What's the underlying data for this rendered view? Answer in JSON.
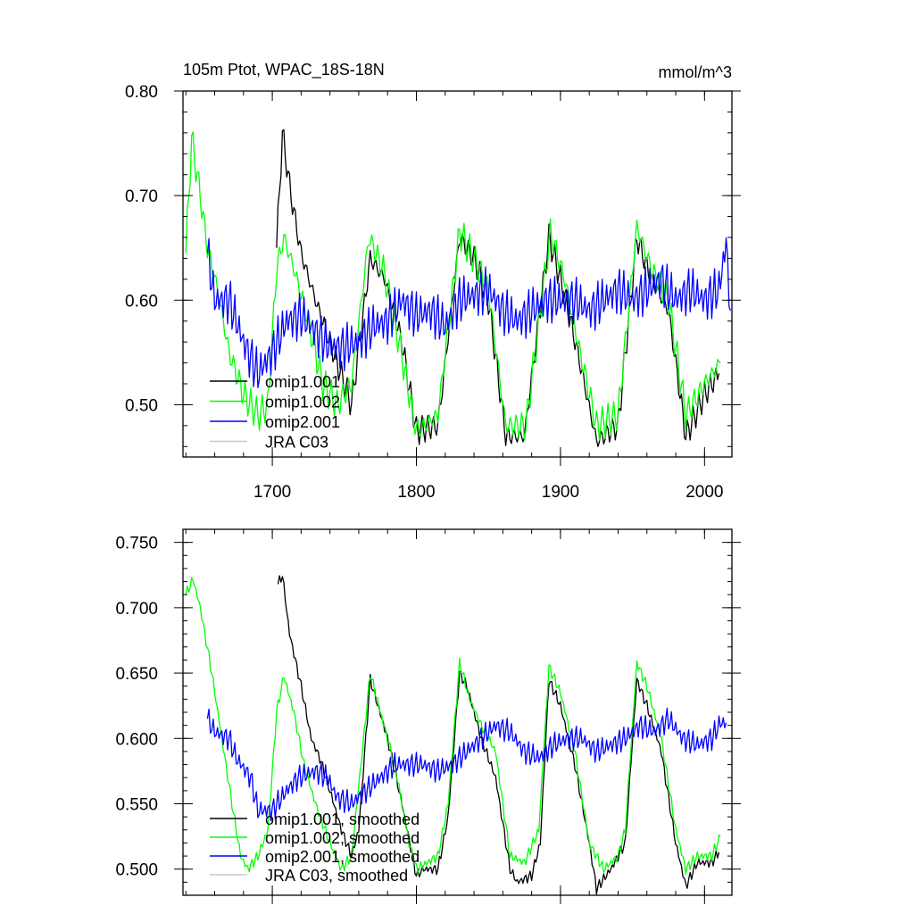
{
  "chart_data": [
    {
      "type": "line",
      "title_left": "105m Ptot, WPAC_18S-18N",
      "title_right": "mmol/m^3",
      "xlabel": "",
      "ylabel": "",
      "xlim": [
        1638,
        2019
      ],
      "ylim": [
        0.45,
        0.8
      ],
      "x_ticks": [
        1700,
        1800,
        1900,
        2000
      ],
      "y_ticks": [
        0.5,
        0.6,
        0.7,
        0.8
      ],
      "y_tick_labels": [
        "0.50",
        "0.60",
        "0.70",
        "0.80"
      ],
      "x_minor_step": 20,
      "y_minor_step": 0.02,
      "grid": false,
      "legend_position": "bottom-left",
      "series": [
        {
          "name": "omip1.001",
          "color": "#000000",
          "smoothed": false,
          "anchors": [
            [
              1703,
              0.65
            ],
            [
              1707,
              0.76
            ],
            [
              1713,
              0.7
            ],
            [
              1720,
              0.645
            ],
            [
              1730,
              0.6
            ],
            [
              1745,
              0.54
            ],
            [
              1755,
              0.5
            ],
            [
              1768,
              0.64
            ],
            [
              1778,
              0.62
            ],
            [
              1790,
              0.56
            ],
            [
              1800,
              0.475
            ],
            [
              1815,
              0.48
            ],
            [
              1830,
              0.66
            ],
            [
              1840,
              0.64
            ],
            [
              1850,
              0.6
            ],
            [
              1862,
              0.47
            ],
            [
              1875,
              0.47
            ],
            [
              1892,
              0.66
            ],
            [
              1902,
              0.61
            ],
            [
              1912,
              0.55
            ],
            [
              1925,
              0.465
            ],
            [
              1940,
              0.48
            ],
            [
              1953,
              0.66
            ],
            [
              1963,
              0.62
            ],
            [
              1975,
              0.59
            ],
            [
              1987,
              0.47
            ],
            [
              2000,
              0.51
            ],
            [
              2010,
              0.53
            ]
          ],
          "noise_amp": 0.012,
          "noise_period": 4
        },
        {
          "name": "omip1.002",
          "color": "#00ff00",
          "smoothed": false,
          "anchors": [
            [
              1640,
              0.645
            ],
            [
              1644,
              0.755
            ],
            [
              1650,
              0.7
            ],
            [
              1655,
              0.65
            ],
            [
              1662,
              0.61
            ],
            [
              1670,
              0.55
            ],
            [
              1680,
              0.51
            ],
            [
              1690,
              0.49
            ],
            [
              1697,
              0.5
            ],
            [
              1703,
              0.63
            ],
            [
              1708,
              0.66
            ],
            [
              1715,
              0.63
            ],
            [
              1725,
              0.58
            ],
            [
              1735,
              0.52
            ],
            [
              1745,
              0.5
            ],
            [
              1755,
              0.52
            ],
            [
              1767,
              0.66
            ],
            [
              1777,
              0.63
            ],
            [
              1788,
              0.56
            ],
            [
              1800,
              0.475
            ],
            [
              1815,
              0.49
            ],
            [
              1830,
              0.665
            ],
            [
              1840,
              0.64
            ],
            [
              1850,
              0.61
            ],
            [
              1862,
              0.48
            ],
            [
              1876,
              0.48
            ],
            [
              1893,
              0.665
            ],
            [
              1903,
              0.62
            ],
            [
              1912,
              0.56
            ],
            [
              1925,
              0.48
            ],
            [
              1940,
              0.49
            ],
            [
              1953,
              0.67
            ],
            [
              1963,
              0.63
            ],
            [
              1975,
              0.6
            ],
            [
              1987,
              0.49
            ],
            [
              2000,
              0.52
            ],
            [
              2011,
              0.54
            ]
          ],
          "noise_amp": 0.014,
          "noise_period": 4
        },
        {
          "name": "omip2.001",
          "color": "#0000ff",
          "smoothed": false,
          "anchors": [
            [
              1655,
              0.645
            ],
            [
              1660,
              0.6
            ],
            [
              1670,
              0.6
            ],
            [
              1680,
              0.56
            ],
            [
              1690,
              0.53
            ],
            [
              1700,
              0.55
            ],
            [
              1710,
              0.58
            ],
            [
              1720,
              0.585
            ],
            [
              1730,
              0.57
            ],
            [
              1740,
              0.555
            ],
            [
              1750,
              0.555
            ],
            [
              1760,
              0.56
            ],
            [
              1770,
              0.575
            ],
            [
              1780,
              0.58
            ],
            [
              1790,
              0.6
            ],
            [
              1800,
              0.585
            ],
            [
              1810,
              0.59
            ],
            [
              1820,
              0.575
            ],
            [
              1830,
              0.6
            ],
            [
              1840,
              0.605
            ],
            [
              1850,
              0.61
            ],
            [
              1860,
              0.59
            ],
            [
              1870,
              0.58
            ],
            [
              1880,
              0.59
            ],
            [
              1890,
              0.6
            ],
            [
              1900,
              0.6
            ],
            [
              1910,
              0.6
            ],
            [
              1920,
              0.59
            ],
            [
              1930,
              0.6
            ],
            [
              1940,
              0.61
            ],
            [
              1950,
              0.6
            ],
            [
              1960,
              0.61
            ],
            [
              1970,
              0.62
            ],
            [
              1980,
              0.6
            ],
            [
              1990,
              0.61
            ],
            [
              2000,
              0.6
            ],
            [
              2010,
              0.61
            ],
            [
              2015,
              0.655
            ],
            [
              2018,
              0.59
            ]
          ],
          "noise_amp": 0.022,
          "noise_period": 3
        },
        {
          "name": "JRA C03",
          "color": "#c8c8c8",
          "smoothed": false,
          "anchors": [],
          "noise_amp": 0,
          "noise_period": 1
        }
      ]
    },
    {
      "type": "line",
      "title_left": "",
      "title_right": "",
      "xlabel": "",
      "ylabel": "",
      "xlim": [
        1638,
        2019
      ],
      "ylim": [
        0.48,
        0.76
      ],
      "x_ticks": [
        1700,
        1800,
        1900,
        2000
      ],
      "y_ticks": [
        0.5,
        0.55,
        0.6,
        0.65,
        0.7,
        0.75
      ],
      "y_tick_labels": [
        "0.500",
        "0.550",
        "0.600",
        "0.650",
        "0.700",
        "0.750"
      ],
      "x_minor_step": 20,
      "y_minor_step": 0.01,
      "grid": false,
      "legend_position": "bottom-left",
      "series": [
        {
          "name": "omip1.001, smoothed",
          "color": "#000000",
          "smoothed": true,
          "anchors": [
            [
              1704,
              0.718
            ],
            [
              1707,
              0.725
            ],
            [
              1712,
              0.68
            ],
            [
              1720,
              0.64
            ],
            [
              1727,
              0.6
            ],
            [
              1733,
              0.585
            ],
            [
              1740,
              0.56
            ],
            [
              1748,
              0.53
            ],
            [
              1755,
              0.51
            ],
            [
              1760,
              0.53
            ],
            [
              1768,
              0.645
            ],
            [
              1772,
              0.63
            ],
            [
              1780,
              0.6
            ],
            [
              1790,
              0.55
            ],
            [
              1800,
              0.495
            ],
            [
              1805,
              0.5
            ],
            [
              1815,
              0.5
            ],
            [
              1822,
              0.54
            ],
            [
              1830,
              0.65
            ],
            [
              1835,
              0.64
            ],
            [
              1845,
              0.6
            ],
            [
              1855,
              0.57
            ],
            [
              1865,
              0.5
            ],
            [
              1870,
              0.49
            ],
            [
              1880,
              0.495
            ],
            [
              1886,
              0.52
            ],
            [
              1892,
              0.645
            ],
            [
              1900,
              0.625
            ],
            [
              1910,
              0.58
            ],
            [
              1920,
              0.52
            ],
            [
              1925,
              0.485
            ],
            [
              1935,
              0.5
            ],
            [
              1945,
              0.52
            ],
            [
              1953,
              0.645
            ],
            [
              1960,
              0.625
            ],
            [
              1970,
              0.59
            ],
            [
              1980,
              0.52
            ],
            [
              1987,
              0.487
            ],
            [
              1995,
              0.505
            ],
            [
              2005,
              0.505
            ],
            [
              2010,
              0.513
            ]
          ],
          "noise_amp": 0.004,
          "noise_period": 3
        },
        {
          "name": "omip1.002, smoothed",
          "color": "#00ff00",
          "smoothed": true,
          "anchors": [
            [
              1640,
              0.71
            ],
            [
              1645,
              0.722
            ],
            [
              1650,
              0.7
            ],
            [
              1658,
              0.65
            ],
            [
              1665,
              0.6
            ],
            [
              1672,
              0.55
            ],
            [
              1678,
              0.51
            ],
            [
              1683,
              0.5
            ],
            [
              1690,
              0.51
            ],
            [
              1697,
              0.53
            ],
            [
              1703,
              0.62
            ],
            [
              1708,
              0.648
            ],
            [
              1715,
              0.62
            ],
            [
              1722,
              0.58
            ],
            [
              1730,
              0.55
            ],
            [
              1740,
              0.52
            ],
            [
              1748,
              0.5
            ],
            [
              1755,
              0.51
            ],
            [
              1768,
              0.65
            ],
            [
              1775,
              0.62
            ],
            [
              1785,
              0.58
            ],
            [
              1795,
              0.52
            ],
            [
              1800,
              0.5
            ],
            [
              1815,
              0.51
            ],
            [
              1822,
              0.55
            ],
            [
              1830,
              0.658
            ],
            [
              1837,
              0.63
            ],
            [
              1845,
              0.61
            ],
            [
              1855,
              0.59
            ],
            [
              1865,
              0.51
            ],
            [
              1875,
              0.505
            ],
            [
              1885,
              0.53
            ],
            [
              1892,
              0.655
            ],
            [
              1900,
              0.635
            ],
            [
              1910,
              0.59
            ],
            [
              1920,
              0.52
            ],
            [
              1930,
              0.5
            ],
            [
              1940,
              0.51
            ],
            [
              1945,
              0.53
            ],
            [
              1953,
              0.658
            ],
            [
              1960,
              0.64
            ],
            [
              1970,
              0.6
            ],
            [
              1980,
              0.53
            ],
            [
              1987,
              0.5
            ],
            [
              1995,
              0.51
            ],
            [
              2005,
              0.51
            ],
            [
              2011,
              0.525
            ]
          ],
          "noise_amp": 0.004,
          "noise_period": 3
        },
        {
          "name": "omip2.001, smoothed",
          "color": "#0000ff",
          "smoothed": true,
          "anchors": [
            [
              1655,
              0.615
            ],
            [
              1660,
              0.605
            ],
            [
              1670,
              0.6
            ],
            [
              1675,
              0.585
            ],
            [
              1685,
              0.57
            ],
            [
              1690,
              0.545
            ],
            [
              1700,
              0.545
            ],
            [
              1710,
              0.56
            ],
            [
              1718,
              0.57
            ],
            [
              1730,
              0.575
            ],
            [
              1738,
              0.57
            ],
            [
              1745,
              0.555
            ],
            [
              1755,
              0.55
            ],
            [
              1765,
              0.56
            ],
            [
              1775,
              0.57
            ],
            [
              1785,
              0.58
            ],
            [
              1795,
              0.58
            ],
            [
              1805,
              0.58
            ],
            [
              1815,
              0.575
            ],
            [
              1825,
              0.58
            ],
            [
              1835,
              0.59
            ],
            [
              1845,
              0.6
            ],
            [
              1855,
              0.61
            ],
            [
              1865,
              0.605
            ],
            [
              1875,
              0.59
            ],
            [
              1885,
              0.585
            ],
            [
              1895,
              0.595
            ],
            [
              1905,
              0.6
            ],
            [
              1915,
              0.6
            ],
            [
              1925,
              0.59
            ],
            [
              1935,
              0.595
            ],
            [
              1945,
              0.6
            ],
            [
              1955,
              0.61
            ],
            [
              1965,
              0.605
            ],
            [
              1975,
              0.615
            ],
            [
              1985,
              0.6
            ],
            [
              1995,
              0.595
            ],
            [
              2005,
              0.6
            ],
            [
              2011,
              0.612
            ],
            [
              2015,
              0.612
            ]
          ],
          "noise_amp": 0.009,
          "noise_period": 3
        },
        {
          "name": "JRA C03, smoothed",
          "color": "#c8c8c8",
          "smoothed": true,
          "anchors": [],
          "noise_amp": 0,
          "noise_period": 1
        }
      ]
    }
  ]
}
